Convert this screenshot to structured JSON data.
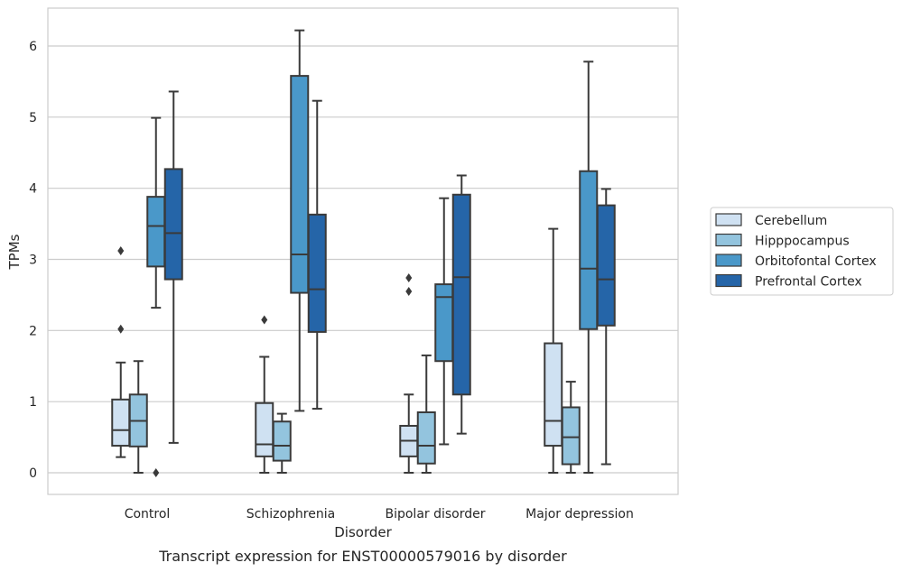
{
  "chart_data": {
    "type": "box",
    "title": "",
    "caption": "Transcript expression for ENST00000579016 by disorder",
    "xlabel": "Disorder",
    "ylabel": "TPMs",
    "ylim": [
      -0.3,
      6.55
    ],
    "yticks": [
      0,
      1,
      2,
      3,
      4,
      5,
      6
    ],
    "grid": "horizontal",
    "legend_position": "right",
    "categories": [
      "Control",
      "Schizophrenia",
      "Bipolar disorder",
      "Major depression"
    ],
    "series": [
      {
        "name": "Cerebellum",
        "color": "#cfe1f2",
        "boxes": [
          {
            "q1": 0.38,
            "median": 0.6,
            "q3": 1.03,
            "whislo": 0.22,
            "whishi": 1.55,
            "fliers": [
              2.02,
              3.12
            ]
          },
          {
            "q1": 0.23,
            "median": 0.4,
            "q3": 0.98,
            "whislo": 0.0,
            "whishi": 1.63,
            "fliers": [
              2.15
            ]
          },
          {
            "q1": 0.23,
            "median": 0.45,
            "q3": 0.66,
            "whislo": 0.0,
            "whishi": 1.1,
            "fliers": [
              2.55,
              2.74
            ]
          },
          {
            "q1": 0.38,
            "median": 0.73,
            "q3": 1.82,
            "whislo": 0.0,
            "whishi": 3.43,
            "fliers": []
          }
        ]
      },
      {
        "name": "Hipppocampus",
        "color": "#93c4de",
        "boxes": [
          {
            "q1": 0.37,
            "median": 0.73,
            "q3": 1.1,
            "whislo": 0.0,
            "whishi": 1.57,
            "fliers": []
          },
          {
            "q1": 0.17,
            "median": 0.38,
            "q3": 0.72,
            "whislo": 0.0,
            "whishi": 0.83,
            "fliers": []
          },
          {
            "q1": 0.13,
            "median": 0.38,
            "q3": 0.85,
            "whislo": 0.0,
            "whishi": 1.65,
            "fliers": []
          },
          {
            "q1": 0.12,
            "median": 0.5,
            "q3": 0.92,
            "whislo": 0.0,
            "whishi": 1.28,
            "fliers": []
          }
        ]
      },
      {
        "name": "Orbitofontal Cortex",
        "color": "#4a98c9",
        "boxes": [
          {
            "q1": 2.9,
            "median": 3.47,
            "q3": 3.88,
            "whislo": 2.32,
            "whishi": 4.99,
            "fliers": [
              0.0
            ]
          },
          {
            "q1": 2.53,
            "median": 3.07,
            "q3": 5.58,
            "whislo": 0.87,
            "whishi": 6.22,
            "fliers": []
          },
          {
            "q1": 1.57,
            "median": 2.47,
            "q3": 2.65,
            "whislo": 0.4,
            "whishi": 3.86,
            "fliers": []
          },
          {
            "q1": 2.02,
            "median": 2.87,
            "q3": 4.24,
            "whislo": 0.0,
            "whishi": 5.78,
            "fliers": []
          }
        ]
      },
      {
        "name": "Prefrontal Cortex",
        "color": "#2565a8",
        "boxes": [
          {
            "q1": 2.72,
            "median": 3.37,
            "q3": 4.27,
            "whislo": 0.42,
            "whishi": 5.36,
            "fliers": []
          },
          {
            "q1": 1.98,
            "median": 2.58,
            "q3": 3.63,
            "whislo": 0.9,
            "whishi": 5.23,
            "fliers": []
          },
          {
            "q1": 1.1,
            "median": 2.75,
            "q3": 3.91,
            "whislo": 0.55,
            "whishi": 4.18,
            "fliers": []
          },
          {
            "q1": 2.07,
            "median": 2.72,
            "q3": 3.76,
            "whislo": 0.12,
            "whishi": 3.99,
            "fliers": []
          }
        ]
      }
    ]
  }
}
